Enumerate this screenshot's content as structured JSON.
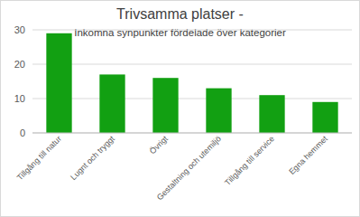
{
  "chart_data": {
    "type": "bar",
    "title": "Trivsamma platser -",
    "subtitle": "Inkomna synpunkter fördelade över kategorier",
    "categories": [
      "Tillgång till natur",
      "Lugnt och tryggt",
      "Övrigt",
      "Gestaltning och utemiljö",
      "Tillgång till service",
      "Egna hemmet"
    ],
    "values": [
      29,
      17,
      16,
      13,
      11,
      9
    ],
    "color": "#12a012",
    "ylim": [
      0,
      30
    ],
    "yticks": [
      0,
      10,
      20,
      30
    ],
    "grid": true
  }
}
